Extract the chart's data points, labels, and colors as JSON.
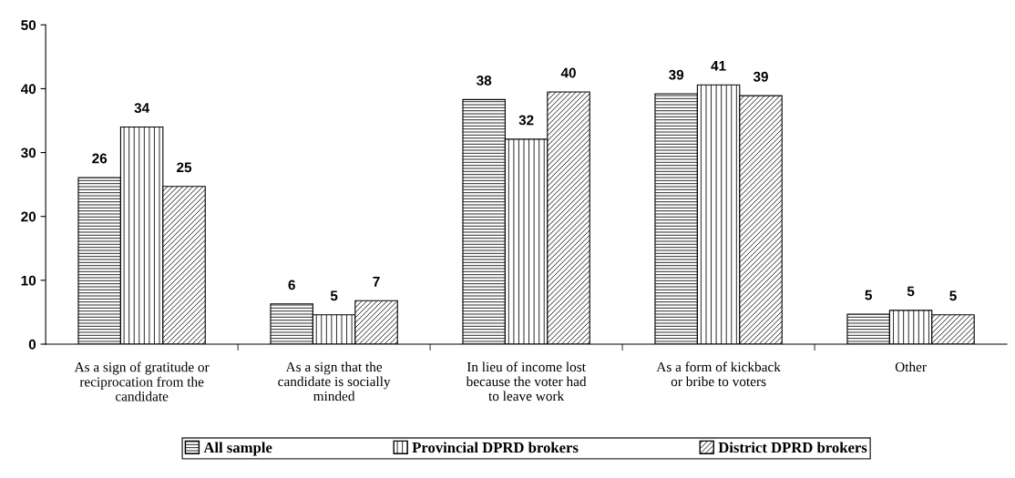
{
  "chart_data": {
    "type": "bar",
    "categories": [
      "As a sign of gratitude or\nreciprocation from the\ncandidate",
      "As a sign that the\ncandidate is socially\nminded",
      "In lieu of income lost\nbecause the voter had\nto leave work",
      "As a form of kickback\nor bribe to voters",
      "Other"
    ],
    "series": [
      {
        "name": "All sample",
        "color": "#000000",
        "values": [
          26.1,
          6.3,
          38.3,
          39.2,
          4.7
        ],
        "value_labels": [
          "26",
          "6",
          "38",
          "39",
          "5"
        ]
      },
      {
        "name": "Provincial DPRD brokers",
        "color": "#000000",
        "values": [
          34.0,
          4.6,
          32.1,
          40.6,
          5.3
        ],
        "value_labels": [
          "34",
          "5",
          "32",
          "41",
          "5"
        ]
      },
      {
        "name": "District DPRD brokers",
        "color": "#000000",
        "values": [
          24.7,
          6.8,
          39.5,
          38.9,
          4.6
        ],
        "value_labels": [
          "25",
          "7",
          "40",
          "39",
          "5"
        ]
      }
    ],
    "ylim": [
      0,
      50
    ],
    "yticks": [
      0,
      10,
      20,
      30,
      40,
      50
    ],
    "grid": false,
    "legend": "bottom"
  }
}
